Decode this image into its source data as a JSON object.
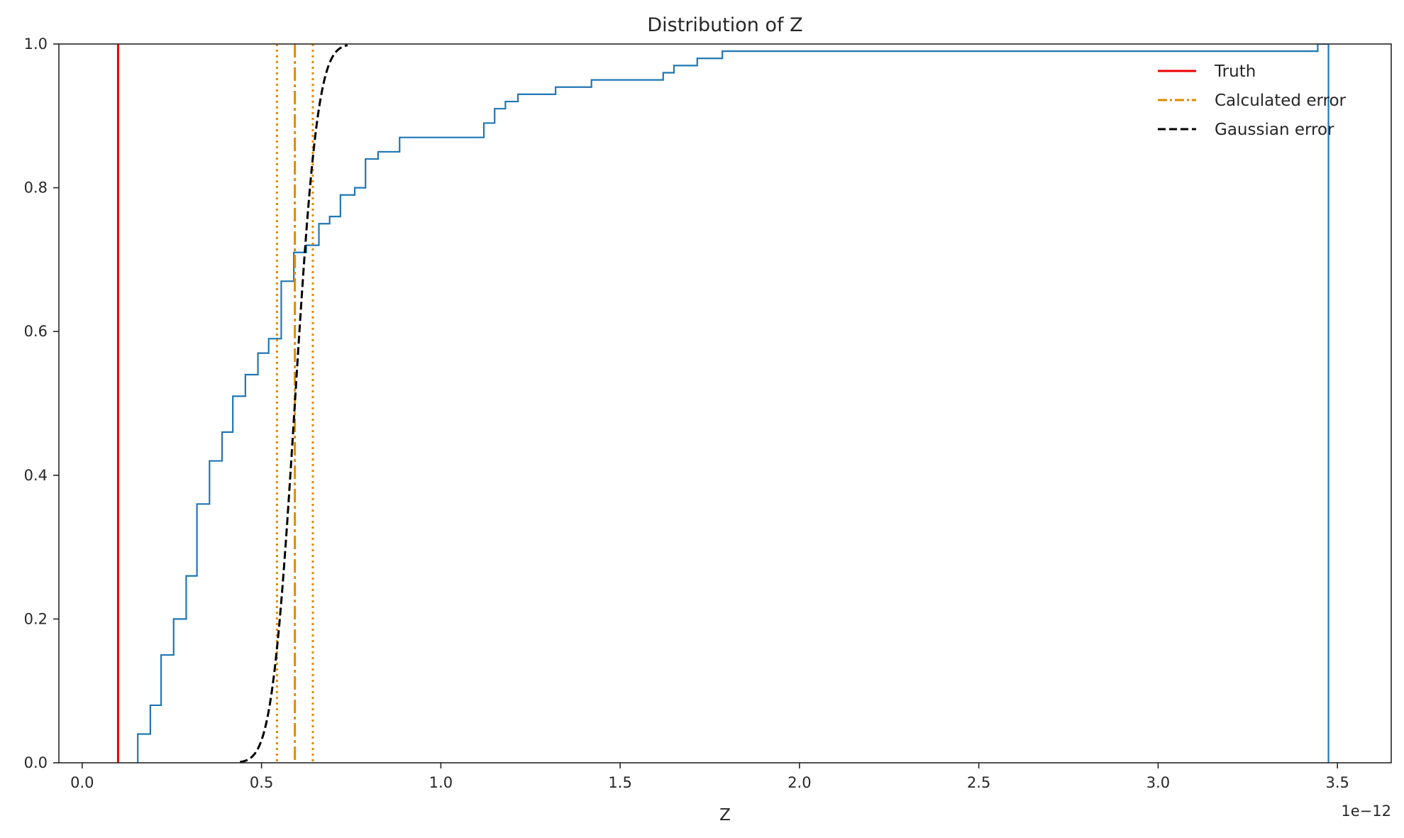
{
  "chart_data": {
    "type": "line",
    "title": "Distribution of Z",
    "xlabel": "Z",
    "ylabel": "",
    "x_offset_label": "1e−12",
    "xlim": [
      -0.065,
      3.65
    ],
    "ylim": [
      0.0,
      1.0
    ],
    "x_ticks": [
      {
        "value": 0.0,
        "label": "0.0"
      },
      {
        "value": 0.5,
        "label": "0.5"
      },
      {
        "value": 1.0,
        "label": "1.0"
      },
      {
        "value": 1.5,
        "label": "1.5"
      },
      {
        "value": 2.0,
        "label": "2.0"
      },
      {
        "value": 2.5,
        "label": "2.5"
      },
      {
        "value": 3.0,
        "label": "3.0"
      },
      {
        "value": 3.5,
        "label": "3.5"
      }
    ],
    "y_ticks": [
      {
        "value": 0.0,
        "label": "0.0"
      },
      {
        "value": 0.2,
        "label": "0.2"
      },
      {
        "value": 0.4,
        "label": "0.4"
      },
      {
        "value": 0.6,
        "label": "0.6"
      },
      {
        "value": 0.8,
        "label": "0.8"
      },
      {
        "value": 1.0,
        "label": "1.0"
      }
    ],
    "grid": false,
    "legend_position": "top-right",
    "legend": [
      {
        "label": "Truth",
        "color": "#ee0000",
        "style": "solid"
      },
      {
        "label": "Calculated error",
        "color": "#e08a00",
        "style": "dashdot"
      },
      {
        "label": "Gaussian error",
        "color": "#000000",
        "style": "dashed"
      }
    ],
    "series": [
      {
        "kind": "ecdf-step",
        "color": "#1f77b4",
        "x": [
          0.155,
          0.19,
          0.22,
          0.255,
          0.29,
          0.32,
          0.355,
          0.39,
          0.42,
          0.455,
          0.49,
          0.52,
          0.555,
          0.59,
          0.625,
          0.66,
          0.69,
          0.72,
          0.76,
          0.79,
          0.825,
          0.885,
          1.12,
          1.15,
          1.18,
          1.215,
          1.32,
          1.42,
          1.62,
          1.65,
          1.715,
          1.785,
          3.445,
          3.475
        ],
        "y": [
          0.04,
          0.08,
          0.15,
          0.2,
          0.26,
          0.36,
          0.42,
          0.46,
          0.51,
          0.54,
          0.57,
          0.59,
          0.67,
          0.71,
          0.72,
          0.75,
          0.76,
          0.79,
          0.8,
          0.84,
          0.85,
          0.87,
          0.89,
          0.91,
          0.92,
          0.93,
          0.94,
          0.95,
          0.96,
          0.97,
          0.98,
          0.99,
          1.0,
          0.0
        ]
      },
      {
        "kind": "vline",
        "name": "Truth",
        "color": "#ee0000",
        "x": 0.1
      },
      {
        "kind": "vline",
        "name": "Calculated error",
        "color": "#e08a00",
        "x": 0.593,
        "band": [
          0.543,
          0.643
        ]
      },
      {
        "kind": "normal-cdf",
        "name": "Gaussian error",
        "color": "#000000",
        "mean": 0.593,
        "sd": 0.05,
        "x_range": [
          0.44,
          0.74
        ]
      }
    ]
  }
}
